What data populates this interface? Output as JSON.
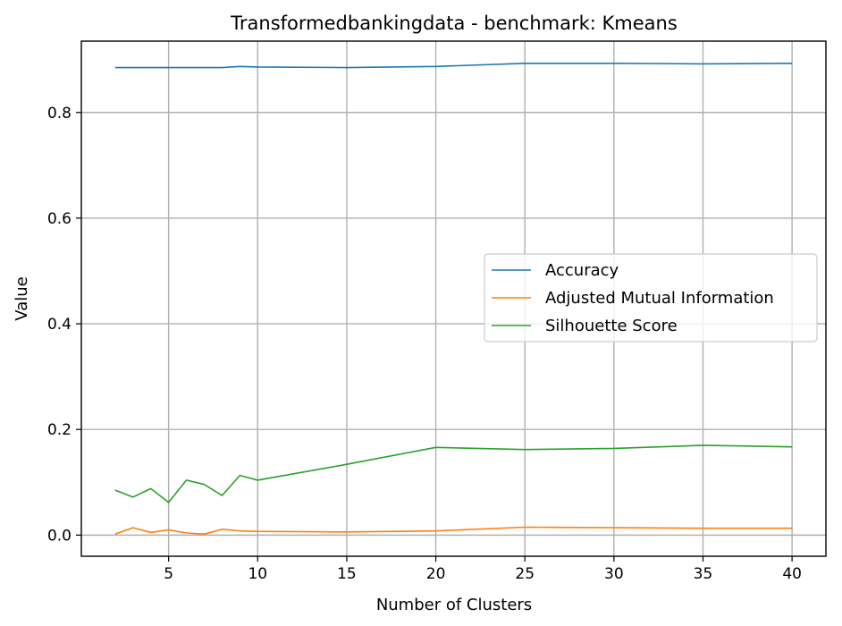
{
  "chart_data": {
    "type": "line",
    "title": "Transformedbankingdata - benchmark: Kmeans",
    "xlabel": "Number of Clusters",
    "ylabel": "Value",
    "xlim": [
      0.1,
      41.9
    ],
    "ylim": [
      -0.04,
      0.935
    ],
    "xticks": [
      5,
      10,
      15,
      20,
      25,
      30,
      35,
      40
    ],
    "yticks": [
      0.0,
      0.2,
      0.4,
      0.6,
      0.8
    ],
    "ytick_labels": [
      "0.0",
      "0.2",
      "0.4",
      "0.6",
      "0.8"
    ],
    "grid": true,
    "legend_position": "center-right",
    "x": [
      2,
      3,
      4,
      5,
      6,
      7,
      8,
      9,
      10,
      15,
      20,
      25,
      30,
      35,
      40
    ],
    "series": [
      {
        "name": "Accuracy",
        "color": "#1f77b4",
        "values": [
          0.885,
          0.885,
          0.885,
          0.885,
          0.885,
          0.885,
          0.885,
          0.887,
          0.886,
          0.885,
          0.887,
          0.893,
          0.893,
          0.892,
          0.893
        ]
      },
      {
        "name": "Adjusted Mutual Information",
        "color": "#ff7f0e",
        "values": [
          0.002,
          0.014,
          0.005,
          0.01,
          0.004,
          0.002,
          0.011,
          0.008,
          0.007,
          0.006,
          0.008,
          0.015,
          0.014,
          0.013,
          0.013
        ]
      },
      {
        "name": "Silhouette Score",
        "color": "#2ca02c",
        "values": [
          0.085,
          0.072,
          0.088,
          0.062,
          0.104,
          0.096,
          0.075,
          0.113,
          0.104,
          0.134,
          0.166,
          0.162,
          0.164,
          0.17,
          0.167
        ]
      }
    ]
  }
}
